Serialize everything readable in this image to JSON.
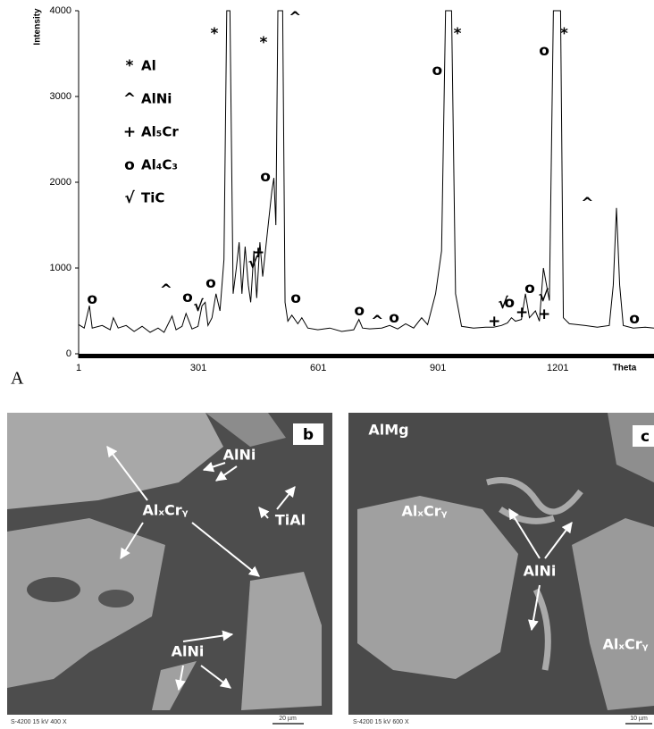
{
  "panel_label": "A",
  "chart_data": {
    "type": "line",
    "y_label": "Intensity",
    "x_label": "Theta",
    "x": [
      1,
      15,
      28,
      35,
      60,
      80,
      88,
      100,
      120,
      140,
      160,
      180,
      200,
      215,
      235,
      245,
      260,
      270,
      285,
      300,
      310,
      318,
      325,
      335,
      345,
      355,
      365,
      372,
      380,
      388,
      396,
      403,
      410,
      418,
      426,
      432,
      440,
      447,
      455,
      462,
      470,
      478,
      485,
      490,
      495,
      500,
      512,
      518,
      525,
      535,
      550,
      560,
      575,
      600,
      630,
      660,
      690,
      703,
      712,
      730,
      760,
      780,
      800,
      820,
      840,
      860,
      875,
      895,
      910,
      920,
      935,
      945,
      960,
      990,
      1020,
      1040,
      1060,
      1075,
      1085,
      1095,
      1110,
      1120,
      1130,
      1145,
      1155,
      1165,
      1180,
      1190,
      1208,
      1215,
      1230,
      1250,
      1270,
      1300,
      1330,
      1340,
      1348,
      1356,
      1365,
      1390,
      1420,
      1442
    ],
    "series": [
      {
        "color": "#000000",
        "values": [
          340,
          300,
          560,
          300,
          330,
          280,
          420,
          300,
          330,
          260,
          320,
          250,
          300,
          250,
          440,
          280,
          320,
          470,
          290,
          320,
          560,
          600,
          330,
          420,
          700,
          500,
          1100,
          4000,
          4000,
          700,
          1000,
          1300,
          700,
          1250,
          800,
          600,
          1200,
          650,
          1300,
          900,
          1250,
          1600,
          1900,
          2050,
          1500,
          4000,
          4000,
          600,
          380,
          450,
          350,
          420,
          300,
          280,
          300,
          260,
          280,
          400,
          300,
          290,
          300,
          330,
          290,
          350,
          300,
          420,
          340,
          700,
          1200,
          4000,
          4000,
          700,
          320,
          300,
          310,
          310,
          330,
          360,
          420,
          380,
          400,
          700,
          420,
          500,
          380,
          1000,
          620,
          4000,
          4000,
          420,
          350,
          340,
          330,
          310,
          330,
          800,
          1700,
          800,
          330,
          300,
          310,
          300
        ]
      }
    ],
    "xlim": [
      1,
      1442
    ],
    "xticks": [
      1,
      301,
      601,
      901,
      1201
    ],
    "ylim": [
      0,
      4000
    ],
    "yticks": [
      0,
      1000,
      2000,
      3000,
      4000
    ],
    "legend_entries": [
      {
        "symbol": "*",
        "label": "Al"
      },
      {
        "symbol": "^",
        "label": "AlNi"
      },
      {
        "symbol": "+",
        "label": "Al₅Cr"
      },
      {
        "symbol": "o",
        "label": "Al₄C₃"
      },
      {
        "symbol": "√",
        "label": "TiC"
      }
    ],
    "annotations": [
      {
        "text": "*",
        "x": 341,
        "y": 3729
      },
      {
        "text": "*",
        "x": 464,
        "y": 3625
      },
      {
        "text": "^",
        "x": 543,
        "y": 3917
      },
      {
        "text": "o",
        "x": 35,
        "y": 635
      },
      {
        "text": "^",
        "x": 220,
        "y": 740
      },
      {
        "text": "o",
        "x": 274,
        "y": 656
      },
      {
        "text": "√",
        "x": 301,
        "y": 552
      },
      {
        "text": "o",
        "x": 332,
        "y": 823
      },
      {
        "text": "+",
        "x": 451,
        "y": 1177
      },
      {
        "text": "√",
        "x": 438,
        "y": 1052
      },
      {
        "text": "o",
        "x": 469,
        "y": 2063
      },
      {
        "text": "o",
        "x": 545,
        "y": 646
      },
      {
        "text": "o",
        "x": 704,
        "y": 500
      },
      {
        "text": "^",
        "x": 749,
        "y": 375
      },
      {
        "text": "o",
        "x": 791,
        "y": 417
      },
      {
        "text": "o",
        "x": 899,
        "y": 3302
      },
      {
        "text": "*",
        "x": 950,
        "y": 3729
      },
      {
        "text": "+",
        "x": 1042,
        "y": 375
      },
      {
        "text": "√",
        "x": 1064,
        "y": 583
      },
      {
        "text": "o",
        "x": 1080,
        "y": 594
      },
      {
        "text": "+",
        "x": 1111,
        "y": 479
      },
      {
        "text": "o",
        "x": 1131,
        "y": 760
      },
      {
        "text": "√",
        "x": 1165,
        "y": 667
      },
      {
        "text": "+",
        "x": 1167,
        "y": 458
      },
      {
        "text": "o",
        "x": 1167,
        "y": 3531
      },
      {
        "text": "*",
        "x": 1217,
        "y": 3729
      },
      {
        "text": "^",
        "x": 1275,
        "y": 1750
      },
      {
        "text": "o",
        "x": 1393,
        "y": 406
      }
    ]
  },
  "micrographs": [
    {
      "panel": "b",
      "labels": [
        "AlNi",
        "AlₓCrᵧ",
        "TiAl",
        "AlNi"
      ],
      "footer": "S-4200 15 kV 400 X",
      "scale_bar": "20 µm"
    },
    {
      "panel": "c",
      "labels": [
        "AlMg",
        "AlₓCrᵧ",
        "AlNi",
        "AlₓCrᵧ"
      ],
      "footer": "S-4200 15 kV 600 X",
      "scale_bar": "10 µm"
    }
  ]
}
